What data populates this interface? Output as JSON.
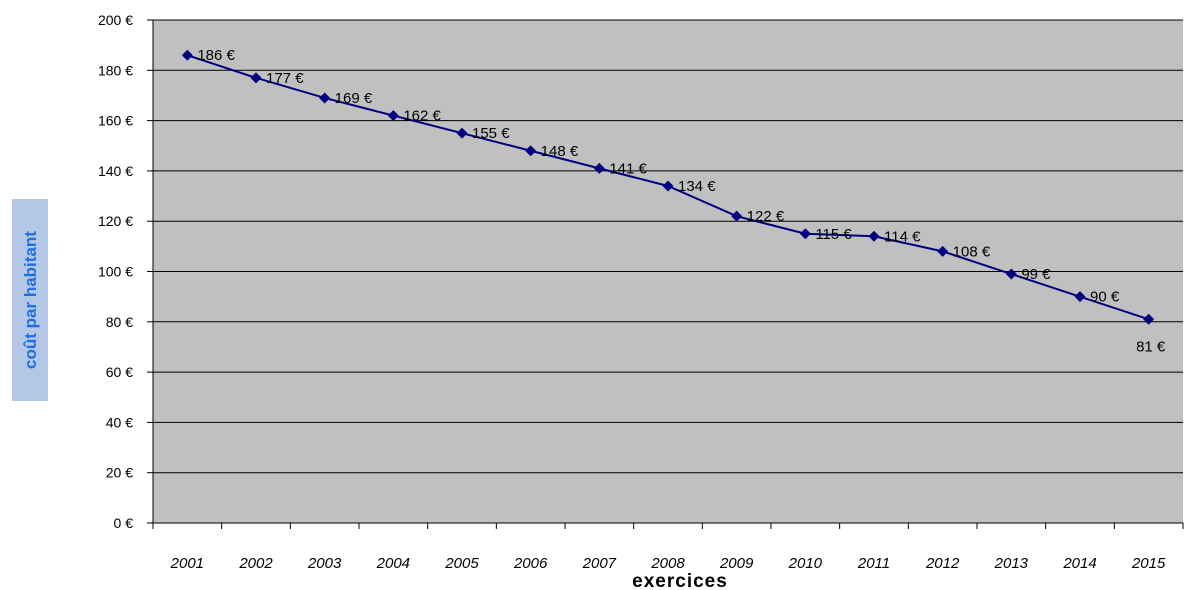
{
  "chart_data": {
    "type": "line",
    "title": "",
    "xlabel": "exercices",
    "ylabel": "coût par habitant",
    "categories": [
      "2001",
      "2002",
      "2003",
      "2004",
      "2005",
      "2006",
      "2007",
      "2008",
      "2009",
      "2010",
      "2011",
      "2012",
      "2013",
      "2014",
      "2015"
    ],
    "series": [
      {
        "values": [
          186,
          177,
          169,
          162,
          155,
          148,
          141,
          134,
          122,
          115,
          114,
          108,
          99,
          90,
          81
        ],
        "data_labels": [
          "186 €",
          "177 €",
          "169 €",
          "162 €",
          "155 €",
          "148 €",
          "141 €",
          "134 €",
          "122 €",
          "115 €",
          "114 €",
          "108 €",
          "99 €",
          "90 €",
          "81 €"
        ]
      }
    ],
    "ylim": [
      0,
      200
    ],
    "yticks": [
      0,
      20,
      40,
      60,
      80,
      100,
      120,
      140,
      160,
      180,
      200
    ],
    "ytick_labels": [
      "0 €",
      "20 €",
      "40 €",
      "60 €",
      "80 €",
      "100 €",
      "120 €",
      "140 €",
      "160 €",
      "180 €",
      "200 €"
    ],
    "grid": true,
    "legend": "none",
    "colors": {
      "plot_background": "#c0c0c0",
      "line": "#000080",
      "gridline": "#000000",
      "ylabel_text": "#1f6fe0",
      "ylabel_box": "#b4c7e7"
    }
  }
}
